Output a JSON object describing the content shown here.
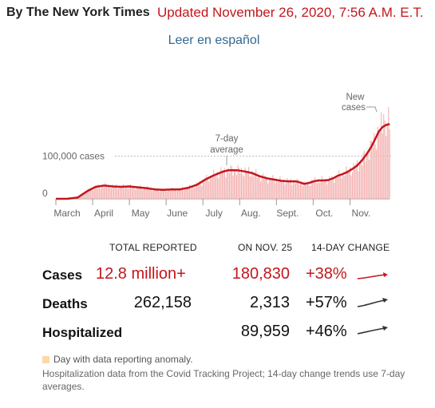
{
  "header": {
    "byline": "By The New York Times",
    "updated": "Updated November 26, 2020, 7:56 A.M. E.T.",
    "spanish_link": "Leer en español"
  },
  "chart_data": {
    "type": "bar",
    "title": "",
    "xlabel": "",
    "ylabel": "",
    "ylim": [
      0,
      230000
    ],
    "x_ticks": [
      "March",
      "April",
      "May",
      "June",
      "July",
      "Aug.",
      "Sept.",
      "Oct.",
      "Nov."
    ],
    "y_ticks": [
      {
        "value": 0,
        "label": "0"
      },
      {
        "value": 100000,
        "label": "100,000 cases"
      }
    ],
    "annotations": [
      "7-day average",
      "New cases"
    ],
    "series": [
      {
        "name": "New cases",
        "mark": "bar",
        "note": "daily values"
      },
      {
        "name": "7-day average",
        "mark": "line"
      }
    ],
    "points": [
      {
        "day": 0,
        "avg": 0
      },
      {
        "day": 10,
        "avg": 200
      },
      {
        "day": 18,
        "avg": 3000
      },
      {
        "day": 26,
        "avg": 18000
      },
      {
        "day": 33,
        "avg": 28000
      },
      {
        "day": 40,
        "avg": 31000
      },
      {
        "day": 47,
        "avg": 29000
      },
      {
        "day": 54,
        "avg": 28000
      },
      {
        "day": 61,
        "avg": 29000
      },
      {
        "day": 68,
        "avg": 27000
      },
      {
        "day": 75,
        "avg": 25000
      },
      {
        "day": 82,
        "avg": 22000
      },
      {
        "day": 89,
        "avg": 21000
      },
      {
        "day": 96,
        "avg": 22000
      },
      {
        "day": 103,
        "avg": 22000
      },
      {
        "day": 110,
        "avg": 26000
      },
      {
        "day": 117,
        "avg": 33000
      },
      {
        "day": 124,
        "avg": 45000
      },
      {
        "day": 131,
        "avg": 55000
      },
      {
        "day": 138,
        "avg": 63000
      },
      {
        "day": 143,
        "avg": 67000
      },
      {
        "day": 150,
        "avg": 67000
      },
      {
        "day": 157,
        "avg": 64000
      },
      {
        "day": 163,
        "avg": 60000
      },
      {
        "day": 169,
        "avg": 53000
      },
      {
        "day": 175,
        "avg": 48000
      },
      {
        "day": 181,
        "avg": 45000
      },
      {
        "day": 187,
        "avg": 42000
      },
      {
        "day": 193,
        "avg": 41000
      },
      {
        "day": 199,
        "avg": 41000
      },
      {
        "day": 203,
        "avg": 38000
      },
      {
        "day": 206,
        "avg": 35000
      },
      {
        "day": 210,
        "avg": 37000
      },
      {
        "day": 214,
        "avg": 41000
      },
      {
        "day": 218,
        "avg": 43000
      },
      {
        "day": 222,
        "avg": 43000
      },
      {
        "day": 226,
        "avg": 44000
      },
      {
        "day": 230,
        "avg": 48000
      },
      {
        "day": 234,
        "avg": 54000
      },
      {
        "day": 238,
        "avg": 58000
      },
      {
        "day": 242,
        "avg": 63000
      },
      {
        "day": 246,
        "avg": 70000
      },
      {
        "day": 250,
        "avg": 78000
      },
      {
        "day": 254,
        "avg": 90000
      },
      {
        "day": 258,
        "avg": 105000
      },
      {
        "day": 262,
        "avg": 123000
      },
      {
        "day": 265,
        "avg": 140000
      },
      {
        "day": 268,
        "avg": 158000
      },
      {
        "day": 271,
        "avg": 168000
      },
      {
        "day": 274,
        "avg": 173000
      },
      {
        "day": 277,
        "avg": 175000
      }
    ],
    "spike": {
      "day": 272,
      "value": 198000
    }
  },
  "table": {
    "headers": [
      "TOTAL REPORTED",
      "ON NOV. 25",
      "14-DAY CHANGE"
    ],
    "rows": [
      {
        "label": "Cases",
        "total": "12.8 million+",
        "day": "180,830",
        "change": "+38%",
        "trend_color": "#c4161c"
      },
      {
        "label": "Deaths",
        "total": "262,158",
        "day": "2,313",
        "change": "+57%",
        "trend_color": "#333333"
      },
      {
        "label": "Hospitalized",
        "total": "",
        "day": "89,959",
        "change": "+46%",
        "trend_color": "#333333"
      }
    ]
  },
  "footer": {
    "legend": "Day with data reporting anomaly.",
    "note": "Hospitalization data from the Covid Tracking Project; 14-day change trends use 7-day averages."
  },
  "colors": {
    "accent": "#c4161c",
    "bar": "#f4b3b3",
    "anomaly": "#fbd9a8",
    "link": "#326891"
  }
}
